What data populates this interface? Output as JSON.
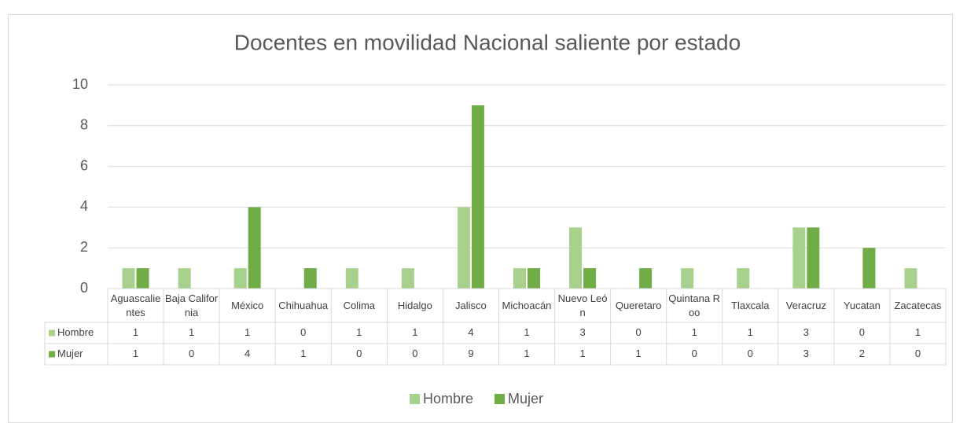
{
  "chart_data": {
    "type": "bar",
    "title": "Docentes en movilidad Nacional saliente por estado",
    "categories": [
      "Aguascalientes",
      "Baja California",
      "México",
      "Chihuahua",
      "Colima",
      "Hidalgo",
      "Jalisco",
      "Michoacán",
      "Nuevo León",
      "Queretaro",
      "Quintana Roo",
      "Tlaxcala",
      "Veracruz",
      "Yucatan",
      "Zacatecas"
    ],
    "series": [
      {
        "name": "Hombre",
        "color": "#a9d18e",
        "values": [
          1,
          1,
          1,
          0,
          1,
          1,
          4,
          1,
          3,
          0,
          1,
          1,
          3,
          0,
          1
        ]
      },
      {
        "name": "Mujer",
        "color": "#70ad47",
        "values": [
          1,
          0,
          4,
          1,
          0,
          0,
          9,
          1,
          1,
          1,
          0,
          0,
          3,
          2,
          0
        ]
      }
    ],
    "ylim": [
      0,
      10
    ],
    "yticks": [
      0,
      2,
      4,
      6,
      8,
      10
    ],
    "grid": true,
    "legend": "bottom",
    "data_table": true
  }
}
